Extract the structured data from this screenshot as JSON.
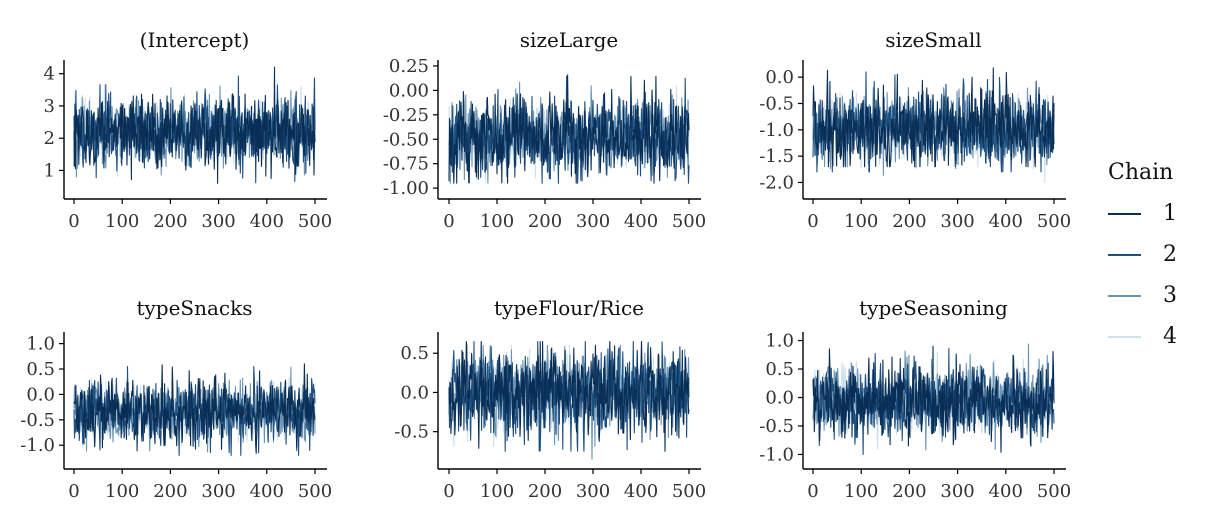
{
  "legend": {
    "title": "Chain",
    "items": [
      {
        "label": "1",
        "color": "#0a2f57"
      },
      {
        "label": "2",
        "color": "#1d4f7f"
      },
      {
        "label": "3",
        "color": "#6b94b3"
      },
      {
        "label": "4",
        "color": "#cfe0eb"
      }
    ]
  },
  "chart_data": [
    {
      "type": "line",
      "title": "(Intercept)",
      "xlim": [
        0,
        500
      ],
      "xticks": [
        "0",
        "100",
        "200",
        "300",
        "400",
        "500"
      ],
      "ylim": [
        0.3,
        4.3
      ],
      "yticks": [
        "1",
        "2",
        "3",
        "4"
      ],
      "ytick_values": [
        1,
        2,
        3,
        4
      ],
      "series": [
        {
          "name": "1",
          "summary": {
            "mean": 2.2,
            "spread": 0.55,
            "min": 0.6,
            "max": 4.2
          }
        },
        {
          "name": "2",
          "summary": {
            "mean": 2.2,
            "spread": 0.55,
            "min": 0.6,
            "max": 4.1
          }
        },
        {
          "name": "3",
          "summary": {
            "mean": 2.2,
            "spread": 0.5,
            "min": 0.8,
            "max": 3.8
          }
        },
        {
          "name": "4",
          "summary": {
            "mean": 2.2,
            "spread": 0.45,
            "min": 0.3,
            "max": 4.1
          }
        }
      ]
    },
    {
      "type": "line",
      "title": "sizeLarge",
      "xlim": [
        0,
        500
      ],
      "xticks": [
        "0",
        "100",
        "200",
        "300",
        "400",
        "500"
      ],
      "ylim": [
        -1.05,
        0.27
      ],
      "yticks": [
        "0.25",
        "0.00",
        "-0.25",
        "-0.50",
        "-0.75",
        "-1.00"
      ],
      "ytick_values": [
        0.25,
        0,
        -0.25,
        -0.5,
        -0.75,
        -1.0
      ],
      "series": [
        {
          "name": "1",
          "summary": {
            "mean": -0.48,
            "spread": 0.2,
            "min": -0.95,
            "max": 0.2
          }
        },
        {
          "name": "2",
          "summary": {
            "mean": -0.48,
            "spread": 0.2,
            "min": -0.95,
            "max": 0.18
          }
        },
        {
          "name": "3",
          "summary": {
            "mean": -0.48,
            "spread": 0.18,
            "min": -0.95,
            "max": 0.1
          }
        },
        {
          "name": "4",
          "summary": {
            "mean": -0.48,
            "spread": 0.16,
            "min": -1.0,
            "max": 0.1
          }
        }
      ]
    },
    {
      "type": "line",
      "title": "sizeSmall",
      "xlim": [
        0,
        500
      ],
      "xticks": [
        "0",
        "100",
        "200",
        "300",
        "400",
        "500"
      ],
      "ylim": [
        -2.2,
        0.25
      ],
      "yticks": [
        "0.0",
        "-0.5",
        "-1.0",
        "-1.5",
        "-2.0"
      ],
      "ytick_values": [
        0,
        -0.5,
        -1.0,
        -1.5,
        -2.0
      ],
      "series": [
        {
          "name": "1",
          "summary": {
            "mean": -1.0,
            "spread": 0.35,
            "min": -1.7,
            "max": 0.2
          }
        },
        {
          "name": "2",
          "summary": {
            "mean": -1.0,
            "spread": 0.35,
            "min": -1.8,
            "max": 0.1
          }
        },
        {
          "name": "3",
          "summary": {
            "mean": -1.0,
            "spread": 0.32,
            "min": -2.1,
            "max": -0.2
          }
        },
        {
          "name": "4",
          "summary": {
            "mean": -1.0,
            "spread": 0.3,
            "min": -2.0,
            "max": -0.3
          }
        }
      ]
    },
    {
      "type": "line",
      "title": "typeSnacks",
      "xlim": [
        0,
        500
      ],
      "xticks": [
        "0",
        "100",
        "200",
        "300",
        "400",
        "500"
      ],
      "ylim": [
        -1.35,
        1.15
      ],
      "yticks": [
        "1.0",
        "0.5",
        "0.0",
        "-0.5",
        "-1.0"
      ],
      "ytick_values": [
        1.0,
        0.5,
        0,
        -0.5,
        -1.0
      ],
      "series": [
        {
          "name": "1",
          "summary": {
            "mean": -0.35,
            "spread": 0.3,
            "min": -1.2,
            "max": 0.6
          }
        },
        {
          "name": "2",
          "summary": {
            "mean": -0.35,
            "spread": 0.3,
            "min": -1.2,
            "max": 0.55
          }
        },
        {
          "name": "3",
          "summary": {
            "mean": -0.35,
            "spread": 0.28,
            "min": -1.3,
            "max": 1.1
          }
        },
        {
          "name": "4",
          "summary": {
            "mean": -0.35,
            "spread": 0.25,
            "min": -1.2,
            "max": 0.6
          }
        }
      ]
    },
    {
      "type": "line",
      "title": "typeFlour/Rice",
      "xlim": [
        0,
        500
      ],
      "xticks": [
        "0",
        "100",
        "200",
        "300",
        "400",
        "500"
      ],
      "ylim": [
        -0.9,
        0.72
      ],
      "yticks": [
        "0.5",
        "0.0",
        "-0.5"
      ],
      "ytick_values": [
        0.5,
        0,
        -0.5
      ],
      "series": [
        {
          "name": "1",
          "summary": {
            "mean": 0.0,
            "spread": 0.28,
            "min": -0.75,
            "max": 0.65
          }
        },
        {
          "name": "2",
          "summary": {
            "mean": 0.0,
            "spread": 0.28,
            "min": -0.75,
            "max": 0.65
          }
        },
        {
          "name": "3",
          "summary": {
            "mean": 0.0,
            "spread": 0.25,
            "min": -0.85,
            "max": 0.6
          }
        },
        {
          "name": "4",
          "summary": {
            "mean": 0.0,
            "spread": 0.22,
            "min": -0.8,
            "max": 0.65
          }
        }
      ]
    },
    {
      "type": "line",
      "title": "typeSeasoning",
      "xlim": [
        0,
        500
      ],
      "xticks": [
        "0",
        "100",
        "200",
        "300",
        "400",
        "500"
      ],
      "ylim": [
        -1.15,
        1.08
      ],
      "yticks": [
        "1.0",
        "0.5",
        "0.0",
        "-0.5",
        "-1.0"
      ],
      "ytick_values": [
        1.0,
        0.5,
        0,
        -0.5,
        -1.0
      ],
      "series": [
        {
          "name": "1",
          "summary": {
            "mean": -0.05,
            "spread": 0.32,
            "min": -1.1,
            "max": 0.9
          }
        },
        {
          "name": "2",
          "summary": {
            "mean": -0.05,
            "spread": 0.32,
            "min": -1.0,
            "max": 0.9
          }
        },
        {
          "name": "3",
          "summary": {
            "mean": -0.05,
            "spread": 0.3,
            "min": -1.1,
            "max": 1.05
          }
        },
        {
          "name": "4",
          "summary": {
            "mean": -0.05,
            "spread": 0.28,
            "min": -1.0,
            "max": 0.8
          }
        }
      ]
    }
  ]
}
